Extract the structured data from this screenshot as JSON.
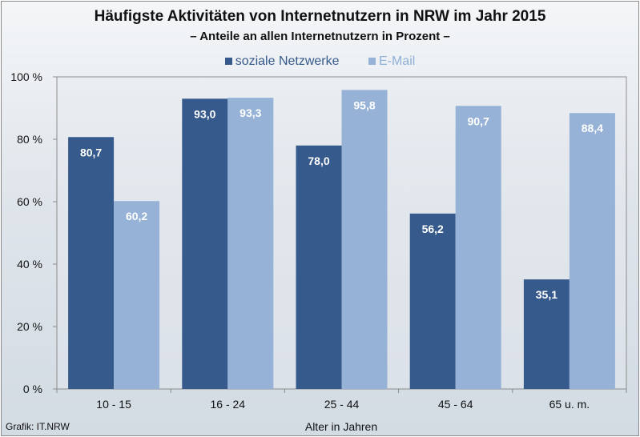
{
  "colors": {
    "series1": "#365a8c",
    "series2": "#96b2d6",
    "series1_text": "#365a8c",
    "series2_text": "#8fb0d8",
    "label_text": "#ffffff"
  },
  "source": "Grafik: IT.NRW",
  "chart_data": {
    "type": "bar",
    "title": "Häufigste Aktivitäten von Internetnutzern in NRW im Jahr 2015",
    "subtitle": "– Anteile an allen Internetnutzern in Prozent –",
    "xlabel": "Alter in Jahren",
    "ylabel": "",
    "categories": [
      "10 - 15",
      "16 - 24",
      "25 - 44",
      "45 - 64",
      "65 u. m."
    ],
    "series": [
      {
        "name": "soziale Netzwerke",
        "values": [
          80.7,
          93.0,
          78.0,
          56.2,
          35.1
        ],
        "labels": [
          "80,7",
          "93,0",
          "78,0",
          "56,2",
          "35,1"
        ]
      },
      {
        "name": "E-Mail",
        "values": [
          60.2,
          93.3,
          95.8,
          90.7,
          88.4
        ],
        "labels": [
          "60,2",
          "93,3",
          "95,8",
          "90,7",
          "88,4"
        ]
      }
    ],
    "ylim": [
      0,
      100
    ],
    "yticks": [
      0,
      20,
      40,
      60,
      80,
      100
    ],
    "ytick_labels": [
      "0 %",
      "20 %",
      "40 %",
      "60 %",
      "80 %",
      "100 %"
    ],
    "grid": false,
    "legend": "top"
  }
}
